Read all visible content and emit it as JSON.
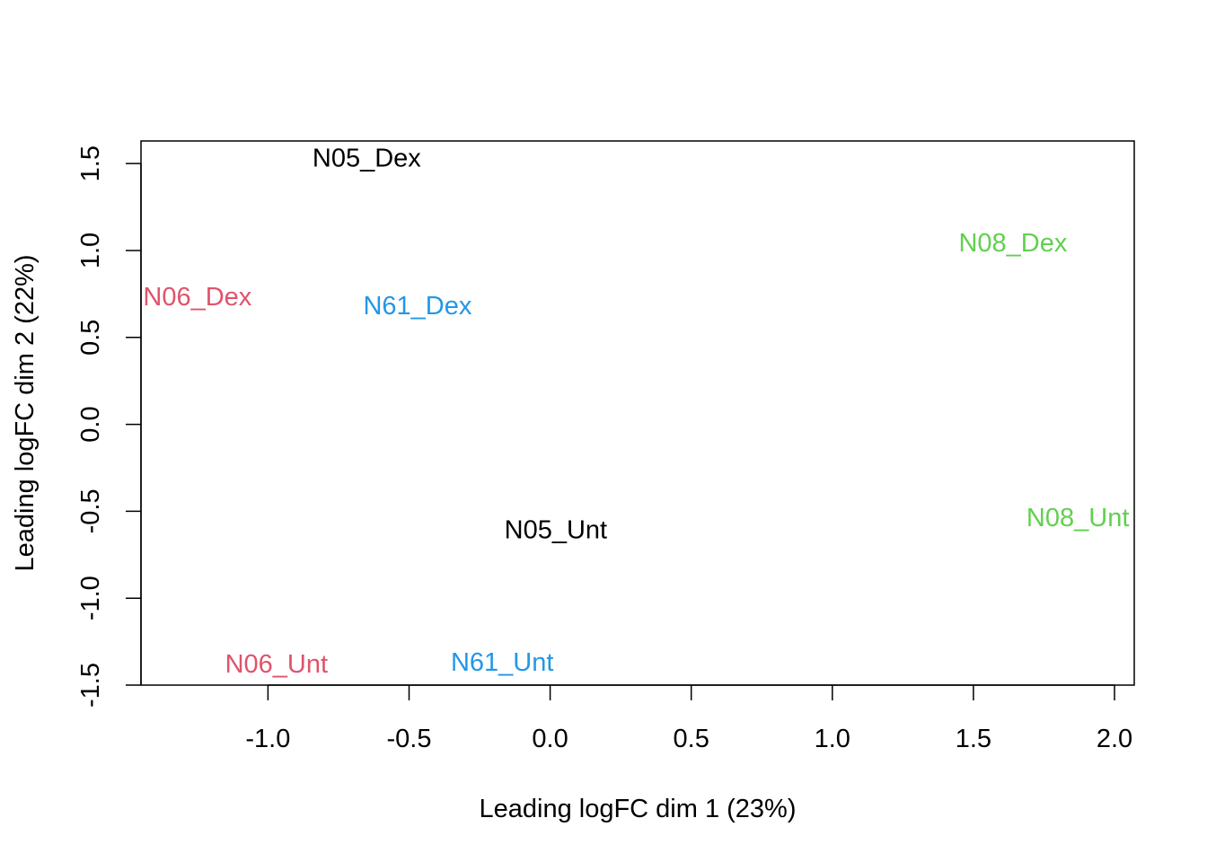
{
  "chart_data": {
    "type": "scatter",
    "title": "",
    "xlabel": "Leading logFC dim 1 (23%)",
    "ylabel": "Leading logFC dim 2 (22%)",
    "xlim": [
      -1.45,
      2.07
    ],
    "ylim": [
      -1.5,
      1.63
    ],
    "x_ticks": [
      -1.0,
      -0.5,
      0.0,
      0.5,
      1.0,
      1.5,
      2.0
    ],
    "x_tick_labels": [
      "-1.0",
      "-0.5",
      "0.0",
      "0.5",
      "1.0",
      "1.5",
      "2.0"
    ],
    "y_ticks": [
      -1.5,
      -1.0,
      -0.5,
      0.0,
      0.5,
      1.0,
      1.5
    ],
    "y_tick_labels": [
      "-1.5",
      "-1.0",
      "-0.5",
      "0.0",
      "0.5",
      "1.0",
      "1.5"
    ],
    "grid": false,
    "points": [
      {
        "label": "N05_Dex",
        "x": -0.65,
        "y": 1.53,
        "color": "#000000"
      },
      {
        "label": "N06_Dex",
        "x": -1.25,
        "y": 0.73,
        "color": "#DF536B"
      },
      {
        "label": "N61_Dex",
        "x": -0.47,
        "y": 0.68,
        "color": "#2297E6"
      },
      {
        "label": "N08_Dex",
        "x": 1.64,
        "y": 1.04,
        "color": "#61D04F"
      },
      {
        "label": "N05_Unt",
        "x": 0.02,
        "y": -0.61,
        "color": "#000000"
      },
      {
        "label": "N08_Unt",
        "x": 1.87,
        "y": -0.54,
        "color": "#61D04F"
      },
      {
        "label": "N06_Unt",
        "x": -0.97,
        "y": -1.38,
        "color": "#DF536B"
      },
      {
        "label": "N61_Unt",
        "x": -0.17,
        "y": -1.37,
        "color": "#2297E6"
      }
    ]
  }
}
